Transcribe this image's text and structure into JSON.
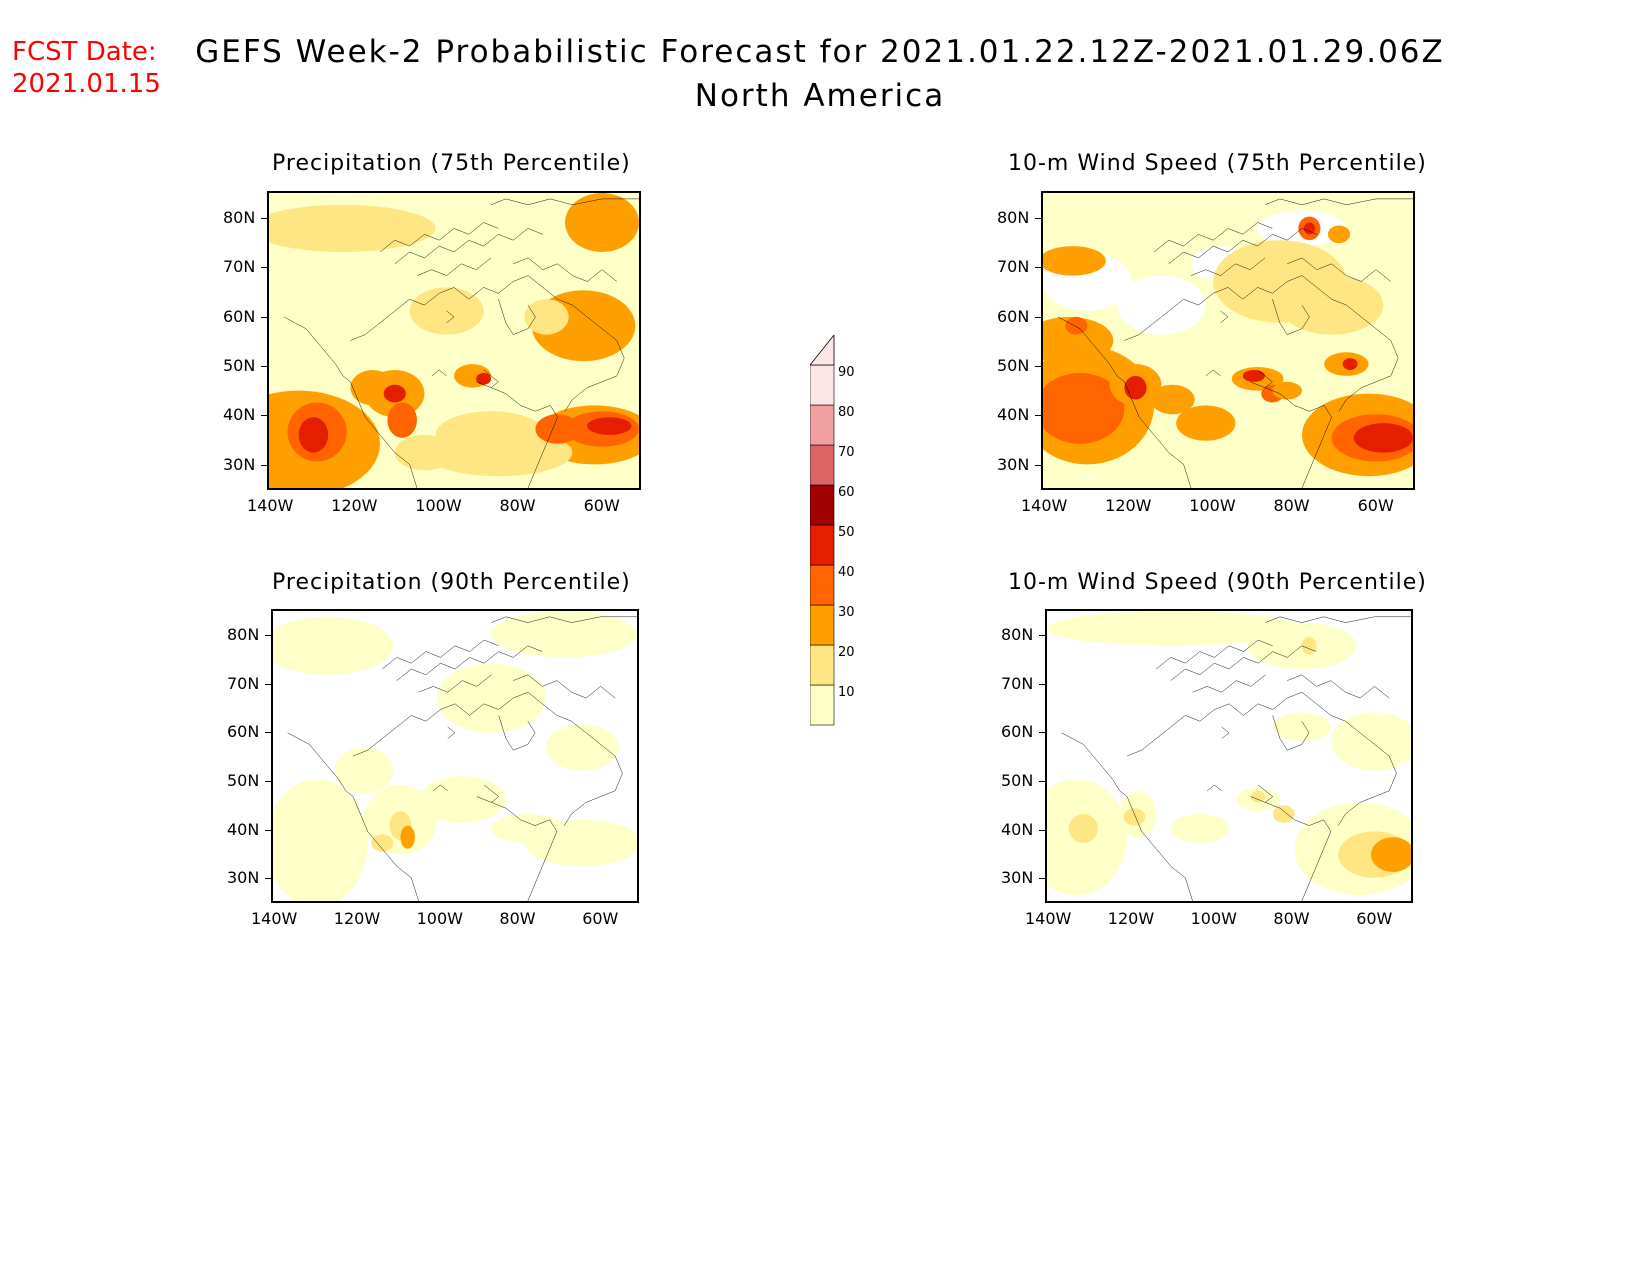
{
  "header": {
    "fcst_label": "FCST Date:",
    "fcst_date": "2021.01.15",
    "title": "GEFS Week-2 Probabilistic Forecast for 2021.01.22.12Z-2021.01.29.06Z",
    "subtitle": "North America"
  },
  "panels": [
    {
      "title": "Precipitation (75th Percentile)"
    },
    {
      "title": "10-m Wind Speed (75th Percentile)"
    },
    {
      "title": "Precipitation (90th Percentile)"
    },
    {
      "title": "10-m Wind Speed (90th Percentile)"
    }
  ],
  "axes": {
    "lat_labels": [
      "80N",
      "70N",
      "60N",
      "50N",
      "40N",
      "30N"
    ],
    "lon_labels": [
      "140W",
      "120W",
      "100W",
      "80W",
      "60W"
    ]
  },
  "colorbar": {
    "levels": [
      "10",
      "20",
      "30",
      "40",
      "50",
      "60",
      "70",
      "80",
      "90"
    ],
    "colors": [
      "#ffffc8",
      "#ffe682",
      "#ffa000",
      "#ff6400",
      "#e61e00",
      "#a00000",
      "#dc6464",
      "#f0a0a0",
      "#ffe6e6"
    ]
  }
}
